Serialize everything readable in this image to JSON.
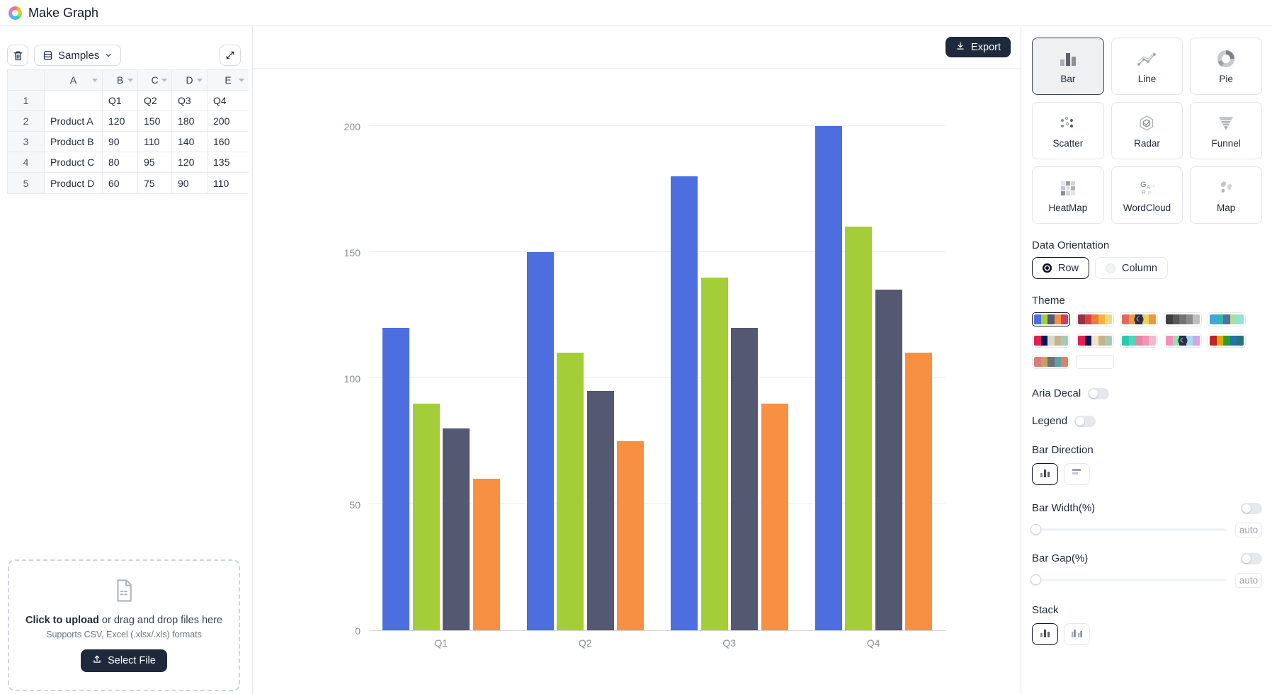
{
  "header": {
    "title": "Make Graph"
  },
  "left_panel": {
    "toolbar": {
      "samples_label": "Samples"
    },
    "table": {
      "column_headers": [
        "A",
        "B",
        "C",
        "D",
        "E"
      ],
      "row_numbers": [
        "1",
        "2",
        "3",
        "4",
        "5"
      ],
      "rows": [
        [
          "",
          "Q1",
          "Q2",
          "Q3",
          "Q4"
        ],
        [
          "Product A",
          "120",
          "150",
          "180",
          "200"
        ],
        [
          "Product B",
          "90",
          "110",
          "140",
          "160"
        ],
        [
          "Product C",
          "80",
          "95",
          "120",
          "135"
        ],
        [
          "Product D",
          "60",
          "75",
          "90",
          "110"
        ]
      ]
    },
    "upload": {
      "title_strong": "Click to upload",
      "title_rest": " or drag and drop files here",
      "subtitle": "Supports CSV, Excel (.xlsx/.xls) formats",
      "button_label": "Select File"
    }
  },
  "chart_panel": {
    "export_label": "Export"
  },
  "chart_data": {
    "type": "bar",
    "title": "",
    "categories": [
      "Q1",
      "Q2",
      "Q3",
      "Q4"
    ],
    "series": [
      {
        "name": "Product A",
        "values": [
          120,
          150,
          180,
          200
        ],
        "color": "#4c6edf"
      },
      {
        "name": "Product B",
        "values": [
          90,
          110,
          140,
          160
        ],
        "color": "#a4ce38"
      },
      {
        "name": "Product C",
        "values": [
          80,
          95,
          120,
          135
        ],
        "color": "#545871"
      },
      {
        "name": "Product D",
        "values": [
          60,
          75,
          90,
          110
        ],
        "color": "#f79042"
      }
    ],
    "ylim": [
      0,
      200
    ],
    "yticks": [
      0,
      50,
      100,
      150,
      200
    ],
    "grid": true,
    "legend": false
  },
  "right_panel": {
    "chart_types": [
      {
        "label": "Bar",
        "icon": "bar-icon",
        "selected": true
      },
      {
        "label": "Line",
        "icon": "line-icon",
        "selected": false
      },
      {
        "label": "Pie",
        "icon": "pie-icon",
        "selected": false
      },
      {
        "label": "Scatter",
        "icon": "scatter-icon",
        "selected": false
      },
      {
        "label": "Radar",
        "icon": "radar-icon",
        "selected": false
      },
      {
        "label": "Funnel",
        "icon": "funnel-icon",
        "selected": false
      },
      {
        "label": "HeatMap",
        "icon": "heatmap-icon",
        "selected": false
      },
      {
        "label": "WordCloud",
        "icon": "wordcloud-icon",
        "selected": false
      },
      {
        "label": "Map",
        "icon": "map-icon",
        "selected": false
      }
    ],
    "data_orientation": {
      "label": "Data Orientation",
      "options": [
        {
          "label": "Row",
          "selected": true
        },
        {
          "label": "Column",
          "selected": false
        }
      ]
    },
    "theme": {
      "label": "Theme",
      "swatches": [
        {
          "colors": [
            "#4c6edf",
            "#a4ce38",
            "#545871",
            "#f79042",
            "#d0405e"
          ],
          "selected": true,
          "dark": false
        },
        {
          "colors": [
            "#97324a",
            "#d94343",
            "#ed7b3b",
            "#f3b33e",
            "#eed983"
          ],
          "selected": false,
          "dark": false
        },
        {
          "colors": [
            "#e06a5a",
            "#ee9b45",
            "#28324a",
            "#f1ce63",
            "#ec9a3c"
          ],
          "selected": false,
          "dark": true
        },
        {
          "colors": [
            "#404040",
            "#595959",
            "#737373",
            "#8c8c8c",
            "#bfbfbf"
          ],
          "selected": false,
          "dark": false
        },
        {
          "colors": [
            "#3fa7dc",
            "#36b5ab",
            "#5b6aa0",
            "#a8e0a0",
            "#8fe2e0"
          ],
          "selected": false,
          "dark": false
        },
        {
          "colors": [
            "#e01f54",
            "#011852",
            "#d9d9ce",
            "#c6b38e",
            "#a4cab6"
          ],
          "selected": false,
          "dark": false
        },
        {
          "colors": [
            "#e01f54",
            "#011852",
            "#f3e5c7",
            "#c6b38e",
            "#a4cab6"
          ],
          "selected": false,
          "dark": false
        },
        {
          "colors": [
            "#2ec7b0",
            "#52d3bd",
            "#e884a5",
            "#f096b4",
            "#f4b8cc"
          ],
          "selected": false,
          "dark": false
        },
        {
          "colors": [
            "#f48fb9",
            "#94e2b4",
            "#2a3247",
            "#a8d8f0",
            "#d5a6e6"
          ],
          "selected": false,
          "dark": true
        },
        {
          "colors": [
            "#c1232b",
            "#e2a600",
            "#26a02a",
            "#2470a8",
            "#27727b"
          ],
          "selected": false,
          "dark": false
        },
        {
          "colors": [
            "#d87c7c",
            "#c9a063",
            "#6e7074",
            "#61a0a8",
            "#dd8265"
          ],
          "selected": false,
          "dark": false
        },
        {
          "colors": [],
          "selected": false,
          "dark": false
        }
      ]
    },
    "aria_decal": {
      "label": "Aria Decal",
      "on": false
    },
    "legend": {
      "label": "Legend",
      "on": false
    },
    "bar_direction": {
      "label": "Bar Direction",
      "selected": "vertical"
    },
    "bar_width": {
      "label": "Bar Width(%)",
      "value_label": "auto",
      "enabled": false
    },
    "bar_gap": {
      "label": "Bar Gap(%)",
      "value_label": "auto",
      "enabled": false
    },
    "stack": {
      "label": "Stack",
      "selected": "grouped"
    }
  }
}
